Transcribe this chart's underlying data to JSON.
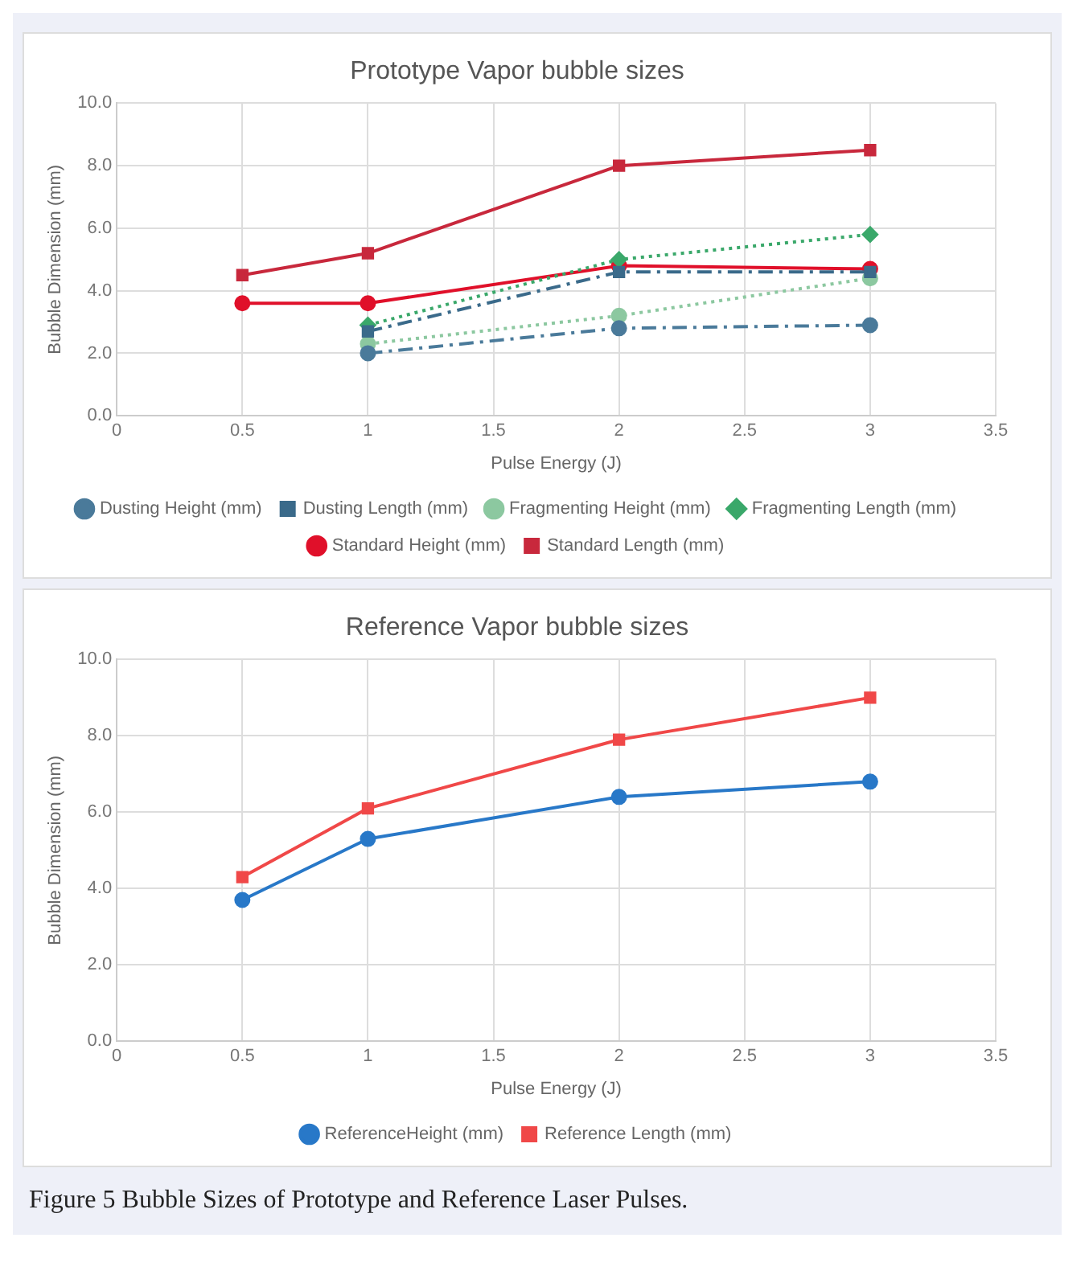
{
  "chart_data": [
    {
      "type": "line",
      "title": "Prototype Vapor bubble sizes",
      "xlabel": "Pulse Energy (J)",
      "ylabel": "Bubble Dimension (mm)",
      "xlim": [
        0,
        3.5
      ],
      "xticks": [
        0,
        0.5,
        1,
        1.5,
        2,
        2.5,
        3,
        3.5
      ],
      "ylim": [
        0,
        10
      ],
      "yticks": [
        {
          "value": 0,
          "label": "0.0"
        },
        {
          "value": 2,
          "label": "2.0"
        },
        {
          "value": 4,
          "label": "4.0"
        },
        {
          "value": 6,
          "label": "6.0"
        },
        {
          "value": 8,
          "label": "8.0"
        },
        {
          "value": 10,
          "label": "10.0"
        }
      ],
      "grid": true,
      "legend": "bottom",
      "series": [
        {
          "name": "Standard Length (mm)",
          "color": "#c8283c",
          "x": [
            0.5,
            1,
            2,
            3
          ],
          "values": [
            4.5,
            5.2,
            8.0,
            8.5
          ],
          "marker": "square",
          "line_style": "solid"
        },
        {
          "name": "Standard Height (mm)",
          "color": "#e0102a",
          "x": [
            0.5,
            1,
            2,
            3
          ],
          "values": [
            3.6,
            3.6,
            4.8,
            4.7
          ],
          "marker": "circle",
          "line_style": "solid"
        },
        {
          "name": "Fragmenting Length (mm)",
          "color": "#3aa86a",
          "x": [
            1,
            2,
            3
          ],
          "values": [
            2.9,
            5.0,
            5.8
          ],
          "marker": "diamond",
          "line_style": "dotted"
        },
        {
          "name": "Fragmenting Height (mm)",
          "color": "#8cc8a0",
          "x": [
            1,
            2,
            3
          ],
          "values": [
            2.3,
            3.2,
            4.4
          ],
          "marker": "circle",
          "line_style": "dotted"
        },
        {
          "name": "Dusting Length (mm)",
          "color": "#3a6a8a",
          "x": [
            1,
            2,
            3
          ],
          "values": [
            2.7,
            4.6,
            4.6
          ],
          "marker": "square",
          "line_style": "dashed"
        },
        {
          "name": "Dusting Height (mm)",
          "color": "#4a7a9a",
          "x": [
            1,
            2,
            3
          ],
          "values": [
            2.0,
            2.8,
            2.9
          ],
          "marker": "circle",
          "line_style": "dashed"
        }
      ]
    },
    {
      "type": "line",
      "title": "Reference Vapor bubble sizes",
      "xlabel": "Pulse Energy (J)",
      "ylabel": "Bubble Dimension (mm)",
      "xlim": [
        0,
        3.5
      ],
      "xticks": [
        0,
        0.5,
        1,
        1.5,
        2,
        2.5,
        3,
        3.5
      ],
      "ylim": [
        0,
        10
      ],
      "yticks": [
        {
          "value": 0,
          "label": "0.0"
        },
        {
          "value": 2,
          "label": "2.0"
        },
        {
          "value": 4,
          "label": "4.0"
        },
        {
          "value": 6,
          "label": "6.0"
        },
        {
          "value": 8,
          "label": "8.0"
        },
        {
          "value": 10,
          "label": "10.0"
        }
      ],
      "grid": true,
      "legend": "bottom",
      "annotations": [
        "Figure 5 Bubble Sizes of Prototype and Reference Laser Pulses."
      ],
      "series": [
        {
          "name": "Reference Length (mm)",
          "color": "#f04848",
          "x": [
            0.5,
            1,
            2,
            3
          ],
          "values": [
            4.3,
            6.1,
            7.9,
            9.0
          ],
          "marker": "square",
          "line_style": "solid"
        },
        {
          "name": "ReferenceHeight (mm)",
          "color": "#2878c8",
          "x": [
            0.5,
            1,
            2,
            3
          ],
          "values": [
            3.7,
            5.3,
            6.4,
            6.8
          ],
          "marker": "circle",
          "line_style": "solid"
        }
      ]
    }
  ]
}
